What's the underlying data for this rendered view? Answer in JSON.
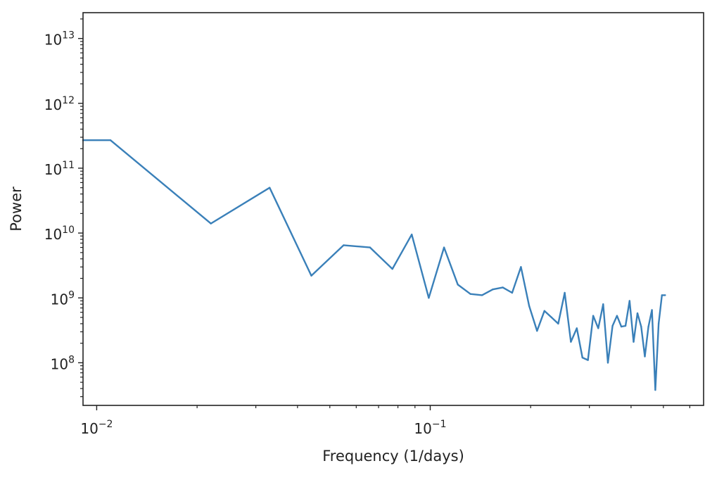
{
  "chart_data": {
    "type": "line",
    "title": "",
    "xlabel": "Frequency (1/days)",
    "ylabel": "Power",
    "x_scale": "log",
    "y_scale": "log",
    "xlim": [
      0.0091,
      0.66
    ],
    "ylim": [
      22000000.0,
      25000000000000.0
    ],
    "grid": false,
    "x_major_ticks": [
      {
        "value": 0.01,
        "base": "10",
        "exp": "−2"
      },
      {
        "value": 0.1,
        "base": "10",
        "exp": "−1"
      }
    ],
    "y_major_ticks": [
      {
        "value": 100000000.0,
        "base": "10",
        "exp": "8"
      },
      {
        "value": 1000000000.0,
        "base": "10",
        "exp": "9"
      },
      {
        "value": 10000000000.0,
        "base": "10",
        "exp": "10"
      },
      {
        "value": 100000000000.0,
        "base": "10",
        "exp": "11"
      },
      {
        "value": 1000000000000.0,
        "base": "10",
        "exp": "12"
      },
      {
        "value": 10000000000000.0,
        "base": "10",
        "exp": "13"
      }
    ],
    "series": [
      {
        "color": "#3a80b9",
        "x": [
          0.0091,
          0.011,
          0.022,
          0.033,
          0.044,
          0.055,
          0.066,
          0.077,
          0.088,
          0.099,
          0.11,
          0.121,
          0.132,
          0.143,
          0.154,
          0.165,
          0.176,
          0.187,
          0.198,
          0.209,
          0.22,
          0.231,
          0.242,
          0.253,
          0.264,
          0.275,
          0.286,
          0.297,
          0.308,
          0.319,
          0.33,
          0.341,
          0.352,
          0.363,
          0.374,
          0.385,
          0.396,
          0.407,
          0.418,
          0.429,
          0.44,
          0.451,
          0.462,
          0.473,
          0.484,
          0.495,
          0.506
        ],
        "y": [
          270000000000.0,
          270000000000.0,
          14000000000.0,
          50000000000.0,
          2200000000.0,
          6500000000.0,
          6000000000.0,
          2800000000.0,
          9500000000.0,
          1000000000.0,
          6000000000.0,
          1600000000.0,
          1150000000.0,
          1100000000.0,
          1350000000.0,
          1450000000.0,
          1200000000.0,
          3000000000.0,
          750000000.0,
          310000000.0,
          630000000.0,
          500000000.0,
          400000000.0,
          1200000000.0,
          210000000.0,
          340000000.0,
          120000000.0,
          110000000.0,
          530000000.0,
          340000000.0,
          800000000.0,
          100000000.0,
          370000000.0,
          530000000.0,
          360000000.0,
          370000000.0,
          900000000.0,
          210000000.0,
          580000000.0,
          360000000.0,
          125000000.0,
          360000000.0,
          650000000.0,
          38000000.0,
          400000000.0,
          1100000000.0,
          1100000000.0
        ]
      }
    ]
  }
}
